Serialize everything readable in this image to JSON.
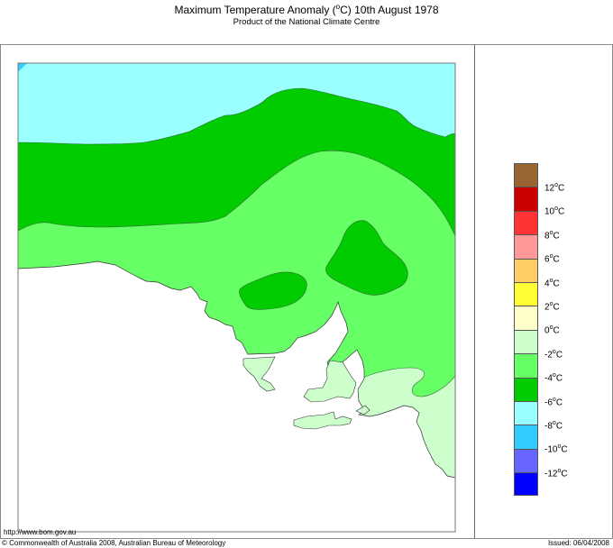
{
  "header": {
    "title_prefix": "Maximum Temperature Anomaly (",
    "title_degree": "o",
    "title_suffix": "C)  10th August 1978",
    "subtitle": "Product of the National Climate Centre"
  },
  "map": {
    "region": "South Australia",
    "contour_colors": {
      "minus8_to_minus6": "#99ffff",
      "minus10_to_minus8": "#33ccff",
      "minus6_to_minus4": "#00cc00",
      "minus4_to_minus2": "#66ff66",
      "minus2_to_0": "#ccffcc",
      "sea": "#ffffff"
    }
  },
  "legend": {
    "swatches": [
      {
        "color": "#996633",
        "range": ">12"
      },
      {
        "color": "#cc0000",
        "range": "10 to 12"
      },
      {
        "color": "#ff3333",
        "range": "8 to 10"
      },
      {
        "color": "#ff9999",
        "range": "6 to 8"
      },
      {
        "color": "#ffcc66",
        "range": "4 to 6"
      },
      {
        "color": "#ffff33",
        "range": "2 to 4"
      },
      {
        "color": "#ffffcc",
        "range": "0 to 2"
      },
      {
        "color": "#ccffcc",
        "range": "-2 to 0"
      },
      {
        "color": "#66ff66",
        "range": "-4 to -2"
      },
      {
        "color": "#00cc00",
        "range": "-6 to -4"
      },
      {
        "color": "#99ffff",
        "range": "-8 to -6"
      },
      {
        "color": "#33ccff",
        "range": "-10 to -8"
      },
      {
        "color": "#6666ff",
        "range": "-12 to -10"
      },
      {
        "color": "#0000ff",
        "range": "<-12"
      }
    ],
    "labels": [
      {
        "value": "12",
        "unit": "C"
      },
      {
        "value": "10",
        "unit": "C"
      },
      {
        "value": "8",
        "unit": "C"
      },
      {
        "value": "6",
        "unit": "C"
      },
      {
        "value": "4",
        "unit": "C"
      },
      {
        "value": "2",
        "unit": "C"
      },
      {
        "value": "0",
        "unit": "C"
      },
      {
        "value": "-2",
        "unit": "C"
      },
      {
        "value": "-4",
        "unit": "C"
      },
      {
        "value": "-6",
        "unit": "C"
      },
      {
        "value": "-8",
        "unit": "C"
      },
      {
        "value": "-10",
        "unit": "C"
      },
      {
        "value": "-12",
        "unit": "C"
      }
    ],
    "degree": "o"
  },
  "footer": {
    "url": "http://www.bom.gov.au",
    "copyright": "© Commonwealth of Australia 2008, Australian Bureau of Meteorology",
    "issued": "Issued: 06/04/2008"
  }
}
